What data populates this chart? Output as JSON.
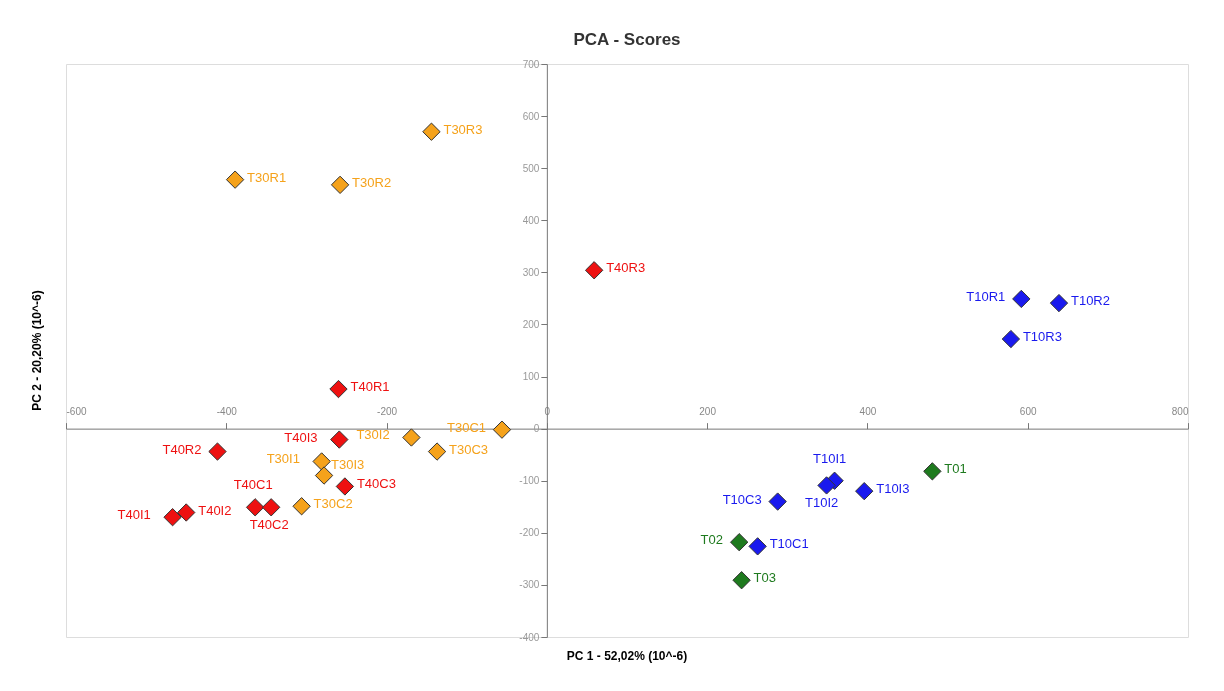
{
  "chart_data": {
    "type": "scatter",
    "title": "PCA - Scores",
    "xlabel": "PC 1 - 52,02% (10^-6)",
    "ylabel": "PC 2 - 20,20% (10^-6)",
    "xlim": [
      -600,
      800
    ],
    "ylim": [
      -400,
      700
    ],
    "xticks": [
      -600,
      -400,
      -200,
      0,
      200,
      400,
      600,
      800
    ],
    "yticks": [
      -400,
      -300,
      -200,
      -100,
      0,
      100,
      200,
      300,
      400,
      500,
      600,
      700
    ],
    "grid": false,
    "legend": false,
    "marker": "diamond",
    "series": [
      {
        "color": "#f5a21b",
        "x": [
          -389,
          -258,
          -144,
          -281,
          -169,
          -278,
          -56,
          -306,
          -137
        ],
        "values": [
          478,
          468,
          570,
          -63,
          -17,
          -90,
          -2,
          -149,
          -44
        ],
        "value_labels": [
          "T30R1",
          "T30R2",
          "T30R3",
          "T30I1",
          "T30I2",
          "T30I3",
          "T30C1",
          "T30C2",
          "T30C3"
        ]
      },
      {
        "color": "#ee1111",
        "x": [
          -260,
          -411,
          59,
          -467,
          -450,
          -259,
          -364,
          -344,
          -252
        ],
        "values": [
          76,
          -44,
          304,
          -170,
          -161,
          -21,
          -151,
          -151,
          -111
        ],
        "value_labels": [
          "T40R1",
          "T40R2",
          "T40R3",
          "T40I1",
          "T40I2",
          "T40I3",
          "T40C1",
          "T40C2",
          "T40C3"
        ]
      },
      {
        "color": "#1a1aee",
        "x": [
          592,
          639,
          579,
          359,
          349,
          396,
          263,
          288
        ],
        "values": [
          249,
          241,
          172,
          -100,
          -109,
          -120,
          -226,
          -140
        ],
        "value_labels": [
          "T10R1",
          "T10R2",
          "T10R3",
          "T10I1",
          "T10I2",
          "T10I3",
          "T10C1",
          "T10C3"
        ]
      },
      {
        "color": "#1e7a1e",
        "x": [
          481,
          240,
          243
        ],
        "values": [
          -82,
          -218,
          -291
        ],
        "value_labels": [
          "T01",
          "T02",
          "T03"
        ]
      }
    ]
  }
}
